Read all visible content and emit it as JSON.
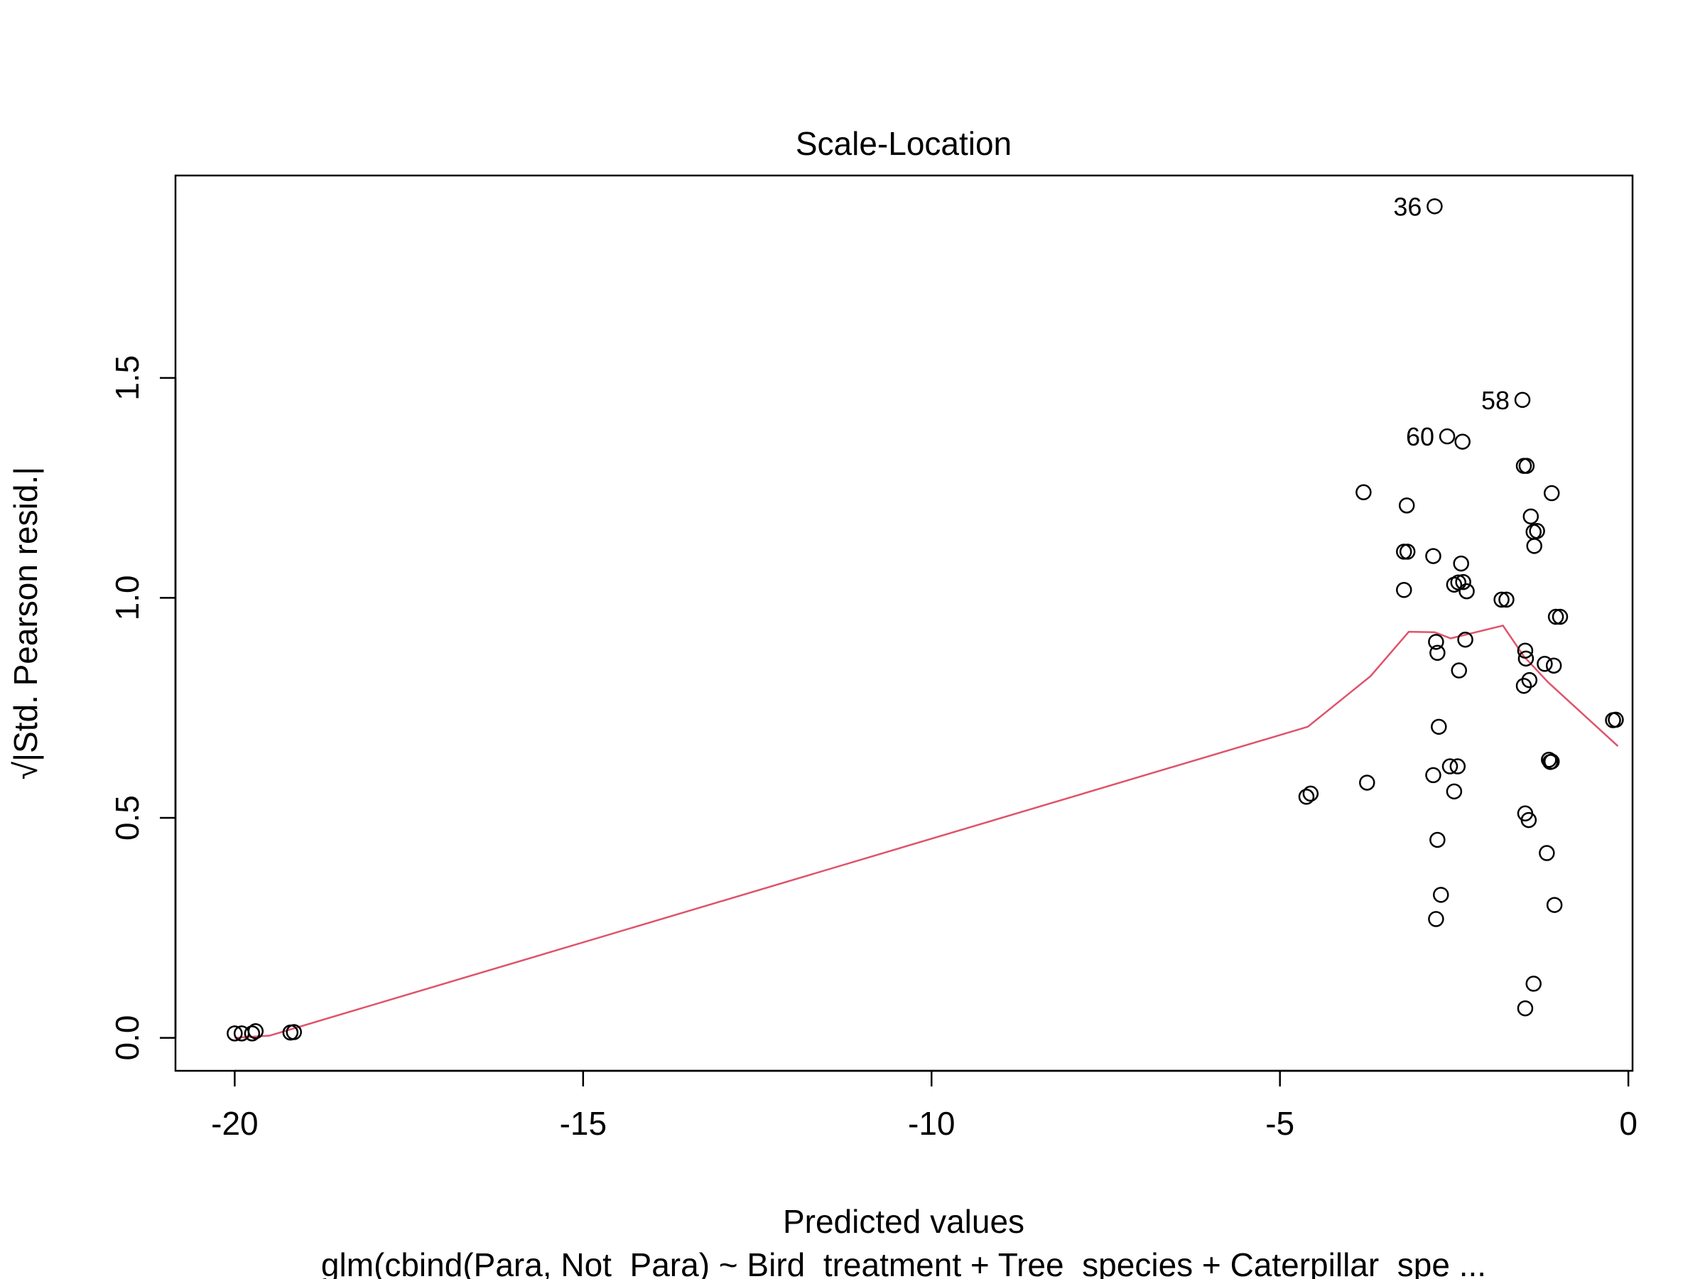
{
  "chart_data": {
    "type": "scatter",
    "title": "Scale-Location",
    "xlabel": "Predicted values",
    "ylabel": "√|Std. Pearson resid.|",
    "subtitle": "glm(cbind(Para, Not_Para) ~ Bird_treatment + Tree_species + Caterpillar_spe ...",
    "xlim": [
      -20.85,
      0.06
    ],
    "ylim": [
      -0.075,
      1.96
    ],
    "xticks": [
      -20,
      -15,
      -10,
      -5,
      0
    ],
    "xtick_labels": [
      "-20",
      "-15",
      "-10",
      "-5",
      "0"
    ],
    "yticks": [
      0.0,
      0.5,
      1.0,
      1.5
    ],
    "ytick_labels": [
      "0.0",
      "0.5",
      "1.0",
      "1.5"
    ],
    "grid": false,
    "legend": "none",
    "point_color": "#000000",
    "line_color": "#DF536B",
    "points": [
      {
        "x": -20.0,
        "y": 0.01
      },
      {
        "x": -19.9,
        "y": 0.01
      },
      {
        "x": -19.75,
        "y": 0.01
      },
      {
        "x": -19.7,
        "y": 0.015
      },
      {
        "x": -19.2,
        "y": 0.012
      },
      {
        "x": -19.15,
        "y": 0.013
      },
      {
        "x": -4.62,
        "y": 0.548
      },
      {
        "x": -4.56,
        "y": 0.555
      },
      {
        "x": -3.75,
        "y": 0.58
      },
      {
        "x": -3.8,
        "y": 1.24
      },
      {
        "x": -3.18,
        "y": 1.21
      },
      {
        "x": -3.22,
        "y": 1.105
      },
      {
        "x": -3.17,
        "y": 1.105
      },
      {
        "x": -3.22,
        "y": 1.018
      },
      {
        "x": -2.8,
        "y": 1.095
      },
      {
        "x": -2.76,
        "y": 0.9
      },
      {
        "x": -2.74,
        "y": 0.875
      },
      {
        "x": -2.72,
        "y": 0.707
      },
      {
        "x": -2.8,
        "y": 0.597
      },
      {
        "x": -2.74,
        "y": 0.45
      },
      {
        "x": -2.69,
        "y": 0.325
      },
      {
        "x": -2.76,
        "y": 0.27
      },
      {
        "x": -2.78,
        "y": 1.89
      },
      {
        "x": -2.6,
        "y": 1.367
      },
      {
        "x": -2.38,
        "y": 1.355
      },
      {
        "x": -2.5,
        "y": 1.03
      },
      {
        "x": -2.44,
        "y": 1.035
      },
      {
        "x": -2.37,
        "y": 1.036
      },
      {
        "x": -2.4,
        "y": 1.078
      },
      {
        "x": -2.32,
        "y": 1.015
      },
      {
        "x": -2.34,
        "y": 0.905
      },
      {
        "x": -2.43,
        "y": 0.835
      },
      {
        "x": -2.56,
        "y": 0.617
      },
      {
        "x": -2.45,
        "y": 0.617
      },
      {
        "x": -2.5,
        "y": 0.56
      },
      {
        "x": -1.82,
        "y": 0.996
      },
      {
        "x": -1.75,
        "y": 0.996
      },
      {
        "x": -1.52,
        "y": 1.45
      },
      {
        "x": -1.5,
        "y": 1.3
      },
      {
        "x": -1.46,
        "y": 1.3
      },
      {
        "x": -1.4,
        "y": 1.185
      },
      {
        "x": -1.36,
        "y": 1.15
      },
      {
        "x": -1.31,
        "y": 1.152
      },
      {
        "x": -1.35,
        "y": 1.118
      },
      {
        "x": -1.1,
        "y": 1.238
      },
      {
        "x": -1.48,
        "y": 0.88
      },
      {
        "x": -1.47,
        "y": 0.862
      },
      {
        "x": -1.42,
        "y": 0.813
      },
      {
        "x": -1.5,
        "y": 0.8
      },
      {
        "x": -1.2,
        "y": 0.85
      },
      {
        "x": -1.07,
        "y": 0.846
      },
      {
        "x": -1.04,
        "y": 0.957
      },
      {
        "x": -0.98,
        "y": 0.957
      },
      {
        "x": -1.14,
        "y": 0.632
      },
      {
        "x": -1.12,
        "y": 0.627
      },
      {
        "x": -1.1,
        "y": 0.628
      },
      {
        "x": -1.48,
        "y": 0.51
      },
      {
        "x": -1.43,
        "y": 0.495
      },
      {
        "x": -1.17,
        "y": 0.42
      },
      {
        "x": -1.06,
        "y": 0.302
      },
      {
        "x": -1.36,
        "y": 0.123
      },
      {
        "x": -1.48,
        "y": 0.067
      },
      {
        "x": -0.22,
        "y": 0.722
      },
      {
        "x": -0.18,
        "y": 0.723
      }
    ],
    "annotations": [
      {
        "text": "36",
        "x": -2.78,
        "y": 1.89
      },
      {
        "text": "58",
        "x": -1.52,
        "y": 1.45
      },
      {
        "text": "60",
        "x": -2.6,
        "y": 1.367
      }
    ],
    "smooth_line": {
      "x": [
        -20.0,
        -19.5,
        -4.6,
        -3.7,
        -3.15,
        -2.78,
        -2.55,
        -1.8,
        -1.5,
        -1.15,
        -0.15
      ],
      "y": [
        0.0,
        0.005,
        0.707,
        0.822,
        0.923,
        0.922,
        0.908,
        0.937,
        0.867,
        0.808,
        0.663
      ]
    }
  }
}
